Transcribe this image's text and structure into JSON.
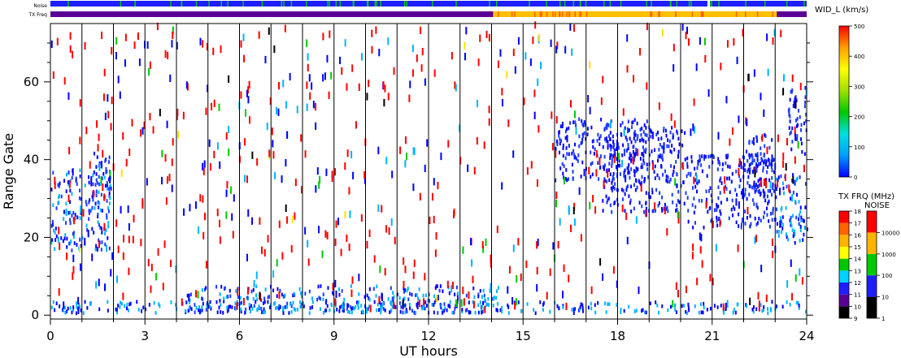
{
  "chart_data": {
    "type": "heatmap",
    "title": "",
    "xlabel": "UT hours",
    "ylabel": "Range Gate",
    "xlim": [
      0,
      24
    ],
    "ylim": [
      -1,
      75
    ],
    "x_ticks": [
      "0",
      "3",
      "6",
      "9",
      "12",
      "15",
      "18",
      "21",
      "24"
    ],
    "x_tick_values": [
      0,
      3,
      6,
      9,
      12,
      15,
      18,
      21,
      24
    ],
    "y_ticks": [
      "0",
      "20",
      "40",
      "60"
    ],
    "y_tick_values": [
      0,
      20,
      40,
      60
    ],
    "hour_gridlines": true,
    "scan_scatter": {
      "description_source": "visible",
      "dense_regions": [
        {
          "x": [
            0.0,
            1.9
          ],
          "y": [
            16,
            37
          ],
          "color_mix": [
            "#0000ff",
            "#1e3cff",
            "#00b4ff"
          ]
        },
        {
          "x": [
            1.3,
            1.9
          ],
          "y": [
            30,
            42
          ],
          "color_mix": [
            "#0000ff",
            "#1e3cff"
          ]
        },
        {
          "x": [
            16.0,
            19.0
          ],
          "y": [
            34,
            50
          ],
          "color_mix": [
            "#0000ff",
            "#1e3cff"
          ]
        },
        {
          "x": [
            17.5,
            20.2
          ],
          "y": [
            26,
            48
          ],
          "color_mix": [
            "#0000ff",
            "#1e3cff"
          ]
        },
        {
          "x": [
            20.2,
            23.0
          ],
          "y": [
            22,
            41
          ],
          "color_mix": [
            "#0000ff",
            "#1e3cff"
          ]
        },
        {
          "x": [
            22.0,
            23.0
          ],
          "y": [
            30,
            46
          ],
          "color_mix": [
            "#0000ff",
            "#1e3cff"
          ]
        },
        {
          "x": [
            23.0,
            24.0
          ],
          "y": [
            18,
            36
          ],
          "color_mix": [
            "#0000ff",
            "#1e3cff",
            "#00b4ff"
          ]
        },
        {
          "x": [
            23.4,
            24.0
          ],
          "y": [
            40,
            58
          ],
          "color_mix": [
            "#0000ff",
            "#1e3cff"
          ]
        },
        {
          "x": [
            4.3,
            14.2
          ],
          "y": [
            0,
            7
          ],
          "color_mix": [
            "#0000ff",
            "#1e3cff",
            "#00b4ff"
          ]
        },
        {
          "x": [
            0.0,
            24.0
          ],
          "y": [
            0,
            3
          ],
          "color_mix": [
            "#0000ff",
            "#00b4ff"
          ]
        }
      ],
      "sparse_points_colors": [
        "#ff0000",
        "#0000ff",
        "#00b4ff",
        "#00c800",
        "#000000",
        "#ffe000"
      ]
    },
    "top_bars": [
      {
        "label": "Noise",
        "segments": [
          {
            "x": [
              0,
              24
            ],
            "color": "#1e1eff"
          }
        ],
        "accent_color": "#00c800"
      },
      {
        "label": "TX Freq",
        "segments": [
          {
            "x": [
              0,
              14.05
            ],
            "color": "#5a0096"
          },
          {
            "x": [
              14.05,
              23.05
            ],
            "color": "#ffc000"
          },
          {
            "x": [
              23.05,
              24
            ],
            "color": "#5a0096"
          }
        ],
        "accent_color": "#ff6000"
      }
    ],
    "colorbars": [
      {
        "title": "WID_L (km/s)",
        "ticks": [
          "0",
          "100",
          "200",
          "300",
          "400",
          "500"
        ],
        "range": [
          0,
          500
        ],
        "stops": [
          "#0000ff",
          "#00a0ff",
          "#00e0e0",
          "#00c800",
          "#a0e000",
          "#ffff00",
          "#ffa000",
          "#ff0000"
        ]
      },
      {
        "title": "TX FRQ (MHz)",
        "ticks": [
          "9",
          "10",
          "11",
          "12",
          "13",
          "14",
          "15",
          "16",
          "17",
          "18"
        ],
        "range": [
          9,
          18
        ],
        "bands": [
          "#000000",
          "#5a0096",
          "#1e1eff",
          "#00d2ff",
          "#00c800",
          "#ffff00",
          "#ffb400",
          "#ff6400",
          "#ff0000"
        ]
      },
      {
        "title": "NOISE",
        "ticks": [
          "1",
          "10",
          "100",
          "1000",
          "10000"
        ],
        "range": [
          1,
          100000
        ],
        "bands": [
          "#000000",
          "#1e1eff",
          "#00c800",
          "#ffb400",
          "#ff0000"
        ]
      }
    ]
  },
  "labels": {
    "noise_row": "Noise",
    "txfreq_row": "TX Freq"
  }
}
